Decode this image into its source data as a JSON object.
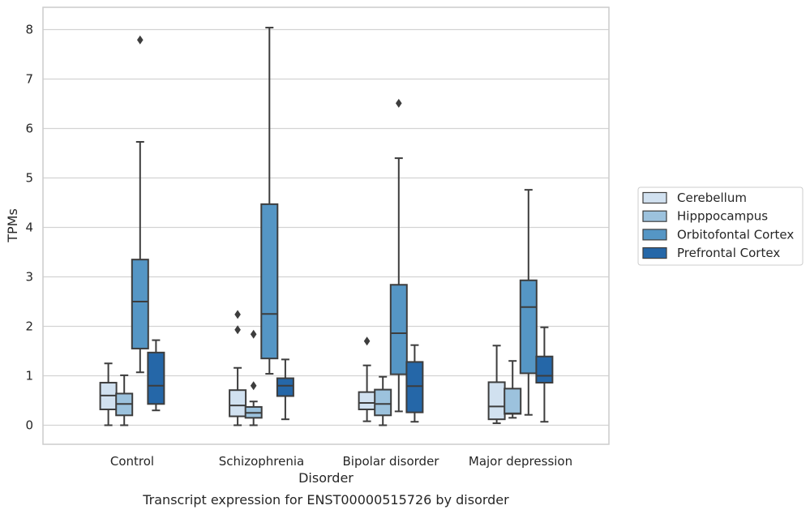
{
  "chart_data": {
    "type": "box",
    "title": "Transcript expression for ENST00000515726 by disorder",
    "xlabel": "Disorder",
    "ylabel": "TPMs",
    "ylim": [
      -0.4,
      8.45
    ],
    "yticks": [
      0,
      1,
      2,
      3,
      4,
      5,
      6,
      7,
      8
    ],
    "grid": "horizontal",
    "legend_position": "right",
    "categories": [
      "Control",
      "Schizophrenia",
      "Bipolar disorder",
      "Major depression"
    ],
    "series": [
      {
        "name": "Cerebellum",
        "color": "#d1e1f0",
        "boxes": [
          {
            "whislo": 0.0,
            "q1": 0.32,
            "med": 0.6,
            "q3": 0.86,
            "whishi": 1.25,
            "fliers": []
          },
          {
            "whislo": 0.0,
            "q1": 0.18,
            "med": 0.4,
            "q3": 0.71,
            "whishi": 1.16,
            "fliers": [
              1.93,
              2.24
            ]
          },
          {
            "whislo": 0.08,
            "q1": 0.32,
            "med": 0.45,
            "q3": 0.67,
            "whishi": 1.21,
            "fliers": [
              1.7
            ]
          },
          {
            "whislo": 0.04,
            "q1": 0.12,
            "med": 0.38,
            "q3": 0.87,
            "whishi": 1.61,
            "fliers": []
          }
        ]
      },
      {
        "name": "Hipppocampus",
        "color": "#9cc2dd",
        "boxes": [
          {
            "whislo": 0.0,
            "q1": 0.2,
            "med": 0.43,
            "q3": 0.64,
            "whishi": 1.01,
            "fliers": []
          },
          {
            "whislo": 0.0,
            "q1": 0.15,
            "med": 0.25,
            "q3": 0.37,
            "whishi": 0.48,
            "fliers": [
              0.8,
              1.84
            ]
          },
          {
            "whislo": 0.0,
            "q1": 0.2,
            "med": 0.43,
            "q3": 0.72,
            "whishi": 0.98,
            "fliers": []
          },
          {
            "whislo": 0.15,
            "q1": 0.23,
            "med": 0.24,
            "q3": 0.74,
            "whishi": 1.3,
            "fliers": []
          }
        ]
      },
      {
        "name": "Orbitofontal Cortex",
        "color": "#5596c5",
        "boxes": [
          {
            "whislo": 1.07,
            "q1": 1.55,
            "med": 2.5,
            "q3": 3.35,
            "whishi": 5.73,
            "fliers": [
              7.79
            ]
          },
          {
            "whislo": 1.04,
            "q1": 1.35,
            "med": 2.25,
            "q3": 4.47,
            "whishi": 8.04,
            "fliers": []
          },
          {
            "whislo": 0.28,
            "q1": 1.03,
            "med": 1.86,
            "q3": 2.84,
            "whishi": 5.4,
            "fliers": [
              6.51
            ]
          },
          {
            "whislo": 0.21,
            "q1": 1.05,
            "med": 2.39,
            "q3": 2.93,
            "whishi": 4.76,
            "fliers": []
          }
        ]
      },
      {
        "name": "Prefrontal Cortex",
        "color": "#2567a8",
        "boxes": [
          {
            "whislo": 0.3,
            "q1": 0.43,
            "med": 0.8,
            "q3": 1.47,
            "whishi": 1.72,
            "fliers": []
          },
          {
            "whislo": 0.12,
            "q1": 0.59,
            "med": 0.8,
            "q3": 0.95,
            "whishi": 1.33,
            "fliers": []
          },
          {
            "whislo": 0.07,
            "q1": 0.26,
            "med": 0.79,
            "q3": 1.28,
            "whishi": 1.62,
            "fliers": []
          },
          {
            "whislo": 0.07,
            "q1": 0.86,
            "med": 1.0,
            "q3": 1.39,
            "whishi": 1.98,
            "fliers": []
          }
        ]
      }
    ]
  }
}
